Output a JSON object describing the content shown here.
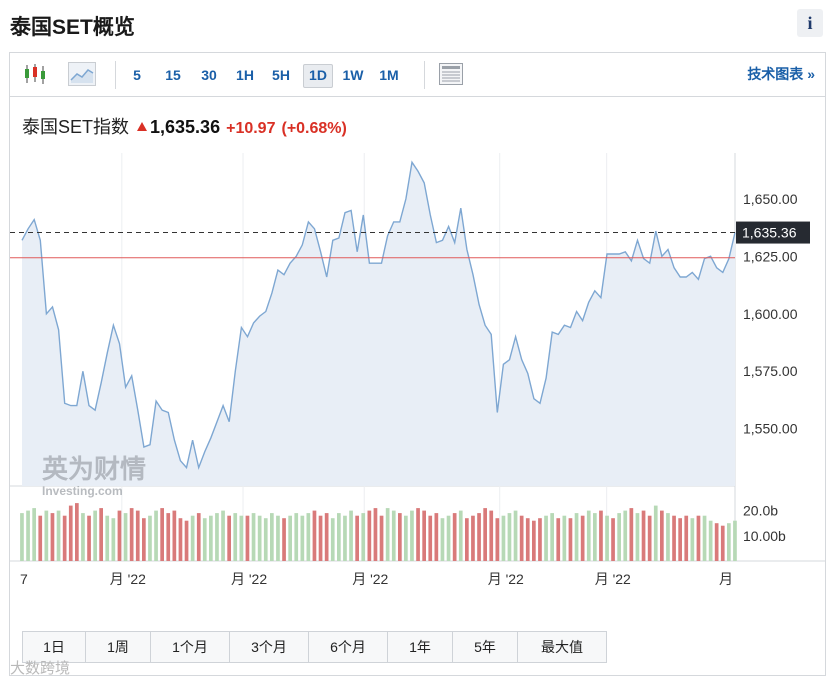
{
  "page": {
    "title": "泰国SET概览",
    "info_label": "i"
  },
  "toolbar": {
    "intervals": [
      "5",
      "15",
      "30",
      "1H",
      "5H",
      "1D",
      "1W",
      "1M"
    ],
    "active_interval": "1D",
    "tech_chart_label": "技术图表 »",
    "icons": [
      "candlestick-icon",
      "area-chart-icon",
      "table-view-icon"
    ]
  },
  "quote": {
    "name": "泰国SET指数",
    "price": "1,635.36",
    "change": "+10.97",
    "change_pct": "(+0.68%)",
    "direction": "up"
  },
  "colors": {
    "up": "#d93025",
    "line": "#7ea7d2",
    "area": "#e8eef6",
    "volume_up": "#b7d9b6",
    "volume_down": "#d97a7a",
    "prev_close_line": "#e05a5a"
  },
  "chart_data": {
    "type": "area",
    "ylim": [
      1525,
      1670
    ],
    "y_ticks": [
      "1,650.00",
      "1,625.00",
      "1,600.00",
      "1,575.00",
      "1,550.00"
    ],
    "y_tick_values": [
      1650,
      1625,
      1600,
      1575,
      1550
    ],
    "current_value_label": "1,635.36",
    "current_value": 1635.36,
    "prev_close": 1624.4,
    "x_tick_labels": [
      "7",
      "月 '22",
      "月 '22",
      "月 '22",
      "月 '22",
      "月 '22",
      "月"
    ],
    "values": [
      1632,
      1637,
      1641,
      1632,
      1600,
      1603,
      1593,
      1561,
      1560,
      1560,
      1575,
      1560,
      1558,
      1570,
      1583,
      1595,
      1587,
      1568,
      1573,
      1558,
      1542,
      1543,
      1562,
      1558,
      1557,
      1545,
      1536,
      1533,
      1545,
      1533,
      1540,
      1546,
      1553,
      1560,
      1553,
      1575,
      1594,
      1590,
      1596,
      1599,
      1601,
      1609,
      1619,
      1617,
      1622,
      1625,
      1630,
      1640,
      1637,
      1627,
      1616,
      1632,
      1633,
      1644,
      1645,
      1627,
      1643,
      1622,
      1622,
      1622,
      1634,
      1640,
      1640,
      1650,
      1666,
      1662,
      1657,
      1643,
      1631,
      1632,
      1638,
      1631,
      1646,
      1628,
      1617,
      1604,
      1595,
      1591,
      1557,
      1578,
      1580,
      1590,
      1580,
      1574,
      1563,
      1561,
      1572,
      1592,
      1591,
      1595,
      1594,
      1601,
      1597,
      1605,
      1610,
      1607,
      1626,
      1626,
      1626,
      1627,
      1623,
      1632,
      1624,
      1622,
      1636,
      1625,
      1628,
      1620,
      1616,
      1616,
      1618,
      1615,
      1624,
      1625,
      1620,
      1618,
      1624,
      1635.36
    ],
    "volume_ticks": [
      "20.0b",
      "10.00b"
    ],
    "volume_tick_values": [
      20,
      10
    ],
    "volume_max": 27,
    "volume": [
      19,
      20,
      21,
      18,
      20,
      19,
      20,
      18,
      22,
      23,
      19,
      18,
      20,
      21,
      18,
      17,
      20,
      19,
      21,
      20,
      17,
      18,
      20,
      21,
      19,
      20,
      17,
      16,
      18,
      19,
      17,
      18,
      19,
      20,
      18,
      19,
      18,
      18,
      19,
      18,
      17,
      19,
      18,
      17,
      18,
      19,
      18,
      19,
      20,
      18,
      19,
      17,
      19,
      18,
      20,
      18,
      19,
      20,
      21,
      18,
      21,
      20,
      19,
      18,
      20,
      21,
      20,
      18,
      19,
      17,
      18,
      19,
      20,
      17,
      18,
      19,
      21,
      20,
      17,
      18,
      19,
      20,
      18,
      17,
      16,
      17,
      18,
      19,
      17,
      18,
      17,
      19,
      18,
      20,
      19,
      20,
      18,
      17,
      19,
      20,
      21,
      19,
      20,
      18,
      22,
      20,
      19,
      18,
      17,
      18,
      17,
      18,
      18,
      16,
      15,
      14,
      15,
      16
    ],
    "volume_direction": [
      "u",
      "u",
      "u",
      "d",
      "u",
      "d",
      "u",
      "d",
      "d",
      "d",
      "u",
      "d",
      "u",
      "d",
      "u",
      "u",
      "d",
      "u",
      "d",
      "d",
      "d",
      "u",
      "u",
      "d",
      "d",
      "d",
      "d",
      "d",
      "u",
      "d",
      "u",
      "u",
      "u",
      "u",
      "d",
      "u",
      "u",
      "d",
      "u",
      "u",
      "u",
      "u",
      "u",
      "d",
      "u",
      "u",
      "u",
      "u",
      "d",
      "d",
      "d",
      "u",
      "u",
      "u",
      "u",
      "d",
      "u",
      "d",
      "d",
      "d",
      "u",
      "u",
      "d",
      "u",
      "u",
      "d",
      "d",
      "d",
      "d",
      "u",
      "u",
      "d",
      "u",
      "d",
      "d",
      "d",
      "d",
      "d",
      "d",
      "u",
      "u",
      "u",
      "d",
      "d",
      "d",
      "d",
      "u",
      "u",
      "d",
      "u",
      "d",
      "u",
      "d",
      "u",
      "u",
      "d",
      "u",
      "d",
      "u",
      "u",
      "d",
      "u",
      "d",
      "d",
      "u",
      "d",
      "u",
      "d",
      "d",
      "d",
      "u",
      "d",
      "u",
      "u",
      "d",
      "d",
      "u",
      "u"
    ]
  },
  "watermark": {
    "logo_text": "英为财情",
    "logo_sub": "Investing.com",
    "corner_text": "大数跨境"
  },
  "range_tabs": [
    "1日",
    "1周",
    "1个月",
    "3个月",
    "6个月",
    "1年",
    "5年",
    "最大值"
  ]
}
